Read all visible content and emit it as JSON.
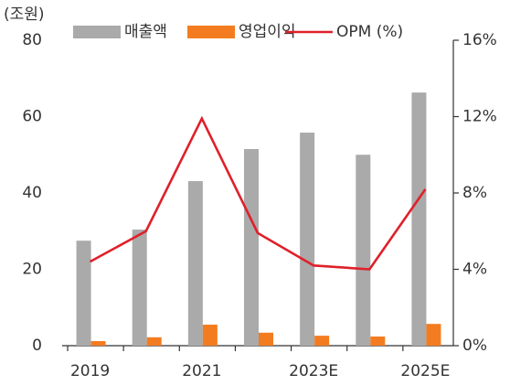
{
  "chart_data": {
    "type": "bar_line",
    "y_label": "(조원)",
    "categories": [
      "2019",
      null,
      "2021",
      null,
      "2023E",
      null,
      "2025E"
    ],
    "series": [
      {
        "name": "매출액",
        "color": "#aaaaaa",
        "type": "bar",
        "values": [
          27.5,
          30.4,
          43.1,
          51.5,
          55.8,
          50.0,
          66.3
        ]
      },
      {
        "name": "영업이익",
        "color": "#f47c20",
        "type": "bar",
        "values": [
          1.2,
          2.2,
          5.5,
          3.4,
          2.6,
          2.4,
          5.7
        ]
      },
      {
        "name": "OPM (%)",
        "color": "#e0202a",
        "type": "line",
        "axis": "y2",
        "values": [
          4.4,
          6.0,
          11.9,
          5.9,
          4.2,
          4.0,
          8.2
        ]
      }
    ],
    "ylim": [
      0,
      80
    ],
    "yticks": [
      0,
      20,
      40,
      60,
      80
    ],
    "y2lim": [
      0,
      16
    ],
    "y2ticks": [
      {
        "value": 0,
        "label": "0%"
      },
      {
        "value": 4,
        "label": "4%"
      },
      {
        "value": 8,
        "label": "8%"
      },
      {
        "value": 12,
        "label": "12%"
      },
      {
        "value": 16,
        "label": "16%"
      }
    ],
    "legend": "top"
  }
}
